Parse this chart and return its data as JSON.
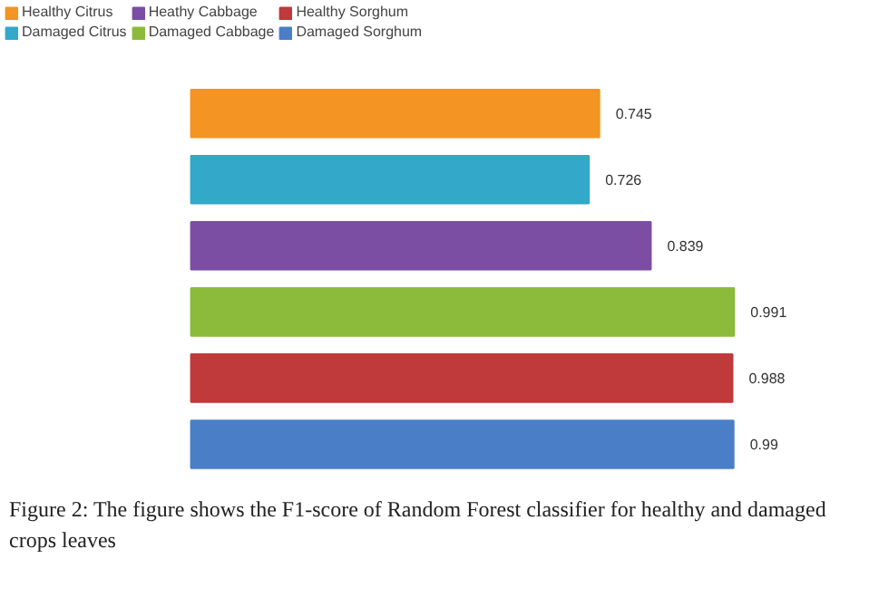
{
  "chart_data": {
    "type": "bar",
    "orientation": "horizontal",
    "categories": [
      null,
      null,
      null,
      null,
      null,
      null
    ],
    "series": [
      {
        "name": "Healthy Citrus",
        "color": "#f39423",
        "values": [
          0.745,
          null,
          null,
          null,
          null,
          null
        ]
      },
      {
        "name": "Damaged Citrus",
        "color": "#33a8c9",
        "values": [
          null,
          0.726,
          null,
          null,
          null,
          null
        ]
      },
      {
        "name": "Heathy Cabbage",
        "color": "#7b4ea3",
        "values": [
          null,
          null,
          0.839,
          null,
          null,
          null
        ]
      },
      {
        "name": "Damaged Cabbage",
        "color": "#8cbb3c",
        "values": [
          null,
          null,
          null,
          0.991,
          null,
          null
        ]
      },
      {
        "name": "Healthy Sorghum",
        "color": "#c0393b",
        "values": [
          null,
          null,
          null,
          null,
          0.988,
          null
        ]
      },
      {
        "name": "Damaged Sorghum",
        "color": "#4a7fc8",
        "values": [
          null,
          null,
          null,
          null,
          null,
          0.99
        ]
      }
    ],
    "stacked": true,
    "data_labels": true,
    "legend": "top",
    "grid": false,
    "annotations": [
      "Figure 2: The figure shows the F1-score of Random Forest classifier for healthy and damaged crops leaves"
    ]
  }
}
